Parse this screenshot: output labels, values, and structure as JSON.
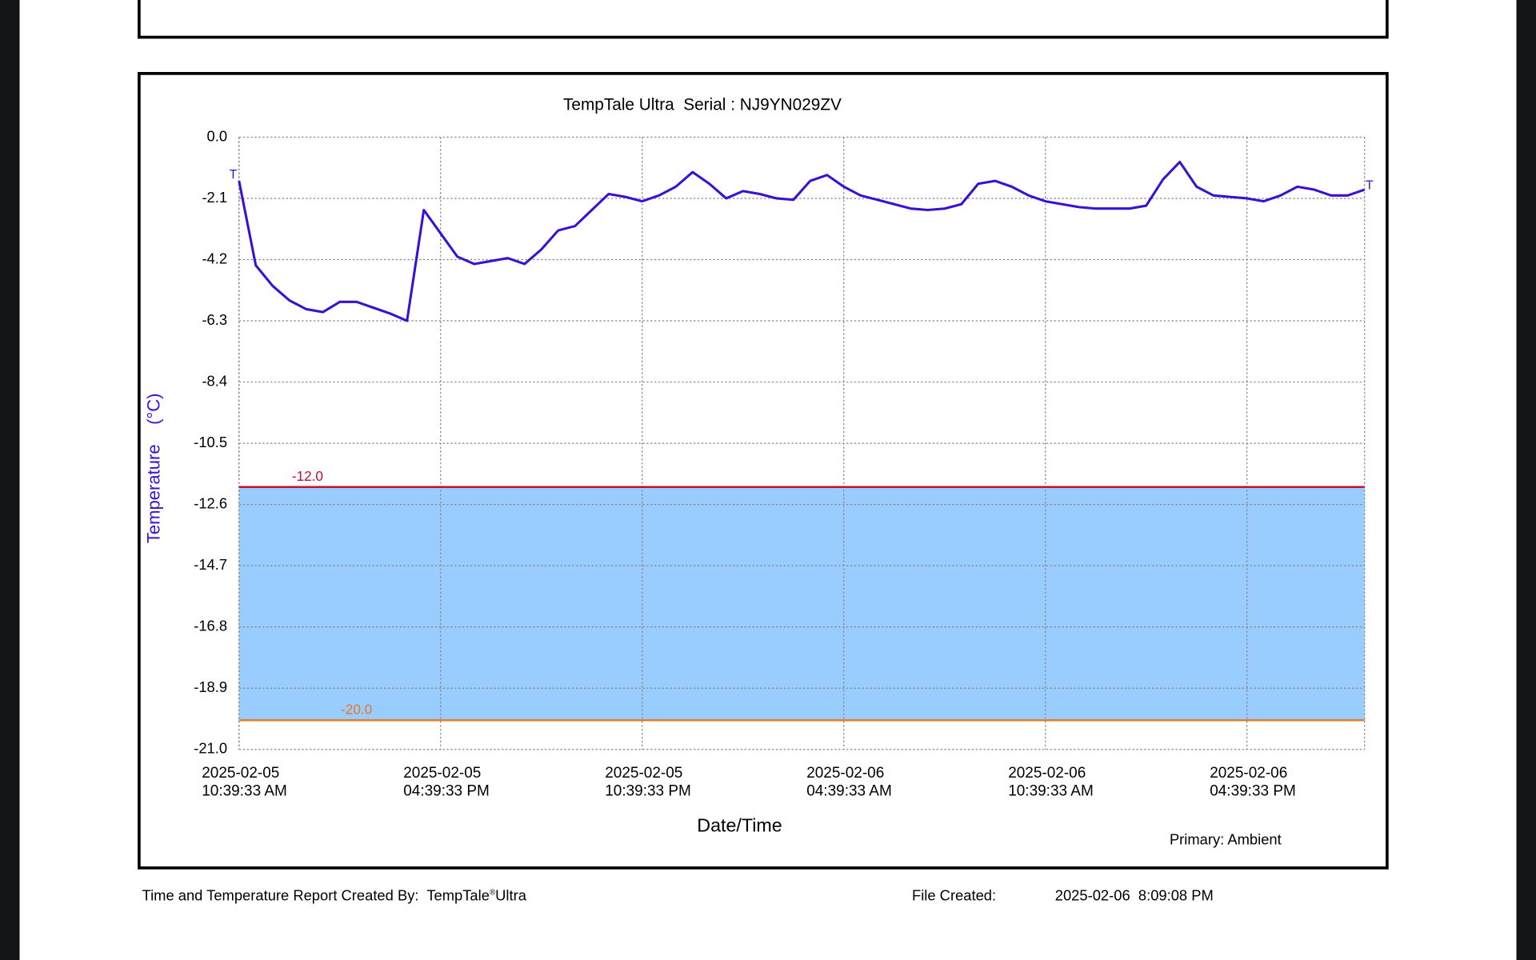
{
  "chart_data": {
    "type": "line",
    "title": "TempTale Ultra  Serial : NJ9YN029ZV",
    "ylabel": "Temperature    (°C)",
    "xlabel": "Date/Time",
    "note": "Primary: Ambient",
    "start_marker": "T",
    "end_marker": "T",
    "xlim": [
      "2025-02-05T10:39:33",
      "2025-02-06T20:09:33"
    ],
    "xticks": [
      {
        "value": "2025-02-05T10:39:33",
        "label": "2025-02-05\n10:39:33 AM"
      },
      {
        "value": "2025-02-05T16:39:33",
        "label": "2025-02-05\n04:39:33 PM"
      },
      {
        "value": "2025-02-05T22:39:33",
        "label": "2025-02-05\n10:39:33 PM"
      },
      {
        "value": "2025-02-06T04:39:33",
        "label": "2025-02-06\n04:39:33 AM"
      },
      {
        "value": "2025-02-06T10:39:33",
        "label": "2025-02-06\n10:39:33 AM"
      },
      {
        "value": "2025-02-06T16:39:33",
        "label": "2025-02-06\n04:39:33 PM"
      }
    ],
    "ylim": [
      -21,
      0
    ],
    "yticks": [
      {
        "value": 0,
        "label": "0.0"
      },
      -2.1,
      -4.2,
      -6.3,
      -8.4,
      -10.5,
      -12.6,
      -14.7,
      -16.8,
      -18.9,
      {
        "value": -21,
        "label": "-21.0"
      }
    ],
    "grid": true,
    "thresholds": [
      {
        "value": -12,
        "label": "-12.0",
        "color": "#c8102e"
      },
      {
        "value": -20,
        "label": "-20.0",
        "color": "#e87722"
      }
    ],
    "band_color": "#99ccff",
    "series": [
      {
        "color": "#3a10d4",
        "x": [
          "2025-02-05T10:39:33",
          "2025-02-05T11:09:33",
          "2025-02-05T11:39:33",
          "2025-02-05T12:09:33",
          "2025-02-05T12:39:33",
          "2025-02-05T13:09:33",
          "2025-02-05T13:39:33",
          "2025-02-05T14:09:33",
          "2025-02-05T14:39:33",
          "2025-02-05T15:09:33",
          "2025-02-05T15:39:33",
          "2025-02-05T16:09:33",
          "2025-02-05T16:39:33",
          "2025-02-05T17:09:33",
          "2025-02-05T17:39:33",
          "2025-02-05T18:09:33",
          "2025-02-05T18:39:33",
          "2025-02-05T19:09:33",
          "2025-02-05T19:39:33",
          "2025-02-05T20:09:33",
          "2025-02-05T20:39:33",
          "2025-02-05T21:09:33",
          "2025-02-05T21:39:33",
          "2025-02-05T22:09:33",
          "2025-02-05T22:39:33",
          "2025-02-05T23:09:33",
          "2025-02-05T23:39:33",
          "2025-02-06T00:09:33",
          "2025-02-06T00:39:33",
          "2025-02-06T01:09:33",
          "2025-02-06T01:39:33",
          "2025-02-06T02:09:33",
          "2025-02-06T02:39:33",
          "2025-02-06T03:09:33",
          "2025-02-06T03:39:33",
          "2025-02-06T04:09:33",
          "2025-02-06T04:39:33",
          "2025-02-06T05:09:33",
          "2025-02-06T05:39:33",
          "2025-02-06T06:09:33",
          "2025-02-06T06:39:33",
          "2025-02-06T07:09:33",
          "2025-02-06T07:39:33",
          "2025-02-06T08:09:33",
          "2025-02-06T08:39:33",
          "2025-02-06T09:09:33",
          "2025-02-06T09:39:33",
          "2025-02-06T10:09:33",
          "2025-02-06T10:39:33",
          "2025-02-06T11:09:33",
          "2025-02-06T11:39:33",
          "2025-02-06T12:09:33",
          "2025-02-06T12:39:33",
          "2025-02-06T13:09:33",
          "2025-02-06T13:39:33",
          "2025-02-06T14:09:33",
          "2025-02-06T14:39:33",
          "2025-02-06T15:09:33",
          "2025-02-06T15:39:33",
          "2025-02-06T16:09:33",
          "2025-02-06T16:39:33",
          "2025-02-06T17:09:33",
          "2025-02-06T17:39:33",
          "2025-02-06T18:09:33",
          "2025-02-06T18:39:33",
          "2025-02-06T19:09:33",
          "2025-02-06T19:39:33",
          "2025-02-06T20:09:33"
        ],
        "values": [
          -1.5,
          -4.4,
          -5.1,
          -5.6,
          -5.9,
          -6.0,
          -5.65,
          -5.65,
          -5.85,
          -6.05,
          -6.3,
          -2.5,
          -3.3,
          -4.1,
          -4.35,
          -4.25,
          -4.15,
          -4.35,
          -3.85,
          -3.2,
          -3.05,
          -2.5,
          -1.95,
          -2.05,
          -2.2,
          -2.0,
          -1.7,
          -1.2,
          -1.6,
          -2.1,
          -1.85,
          -1.95,
          -2.1,
          -2.15,
          -1.5,
          -1.3,
          -1.7,
          -2.0,
          -2.15,
          -2.3,
          -2.45,
          -2.5,
          -2.45,
          -2.3,
          -1.6,
          -1.5,
          -1.7,
          -2.0,
          -2.2,
          -2.3,
          -2.4,
          -2.45,
          -2.45,
          -2.45,
          -2.35,
          -1.45,
          -0.85,
          -1.7,
          -2.0,
          -2.05,
          -2.1,
          -2.2,
          -2.0,
          -1.7,
          -1.8,
          -2.0,
          -2.0,
          -1.8
        ]
      }
    ]
  },
  "footer": {
    "created_by": "Time and Temperature Report Created By:  TempTale",
    "registered": "®",
    "product": "Ultra",
    "file_created_label": "File Created:",
    "file_created": "2025-02-06  8:09:08 PM"
  }
}
